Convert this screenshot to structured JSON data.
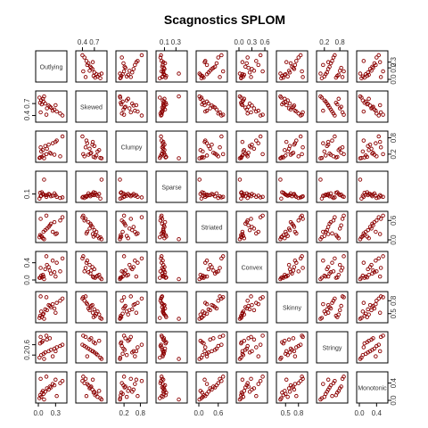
{
  "chart_data": {
    "type": "scatter",
    "title": "Scagnostics SPLOM",
    "variables": [
      "Outlying",
      "Skewed",
      "Clumpy",
      "Sparse",
      "Striated",
      "Convex",
      "Skinny",
      "Stringy",
      "Monotonic"
    ],
    "ranges": [
      [
        0.0,
        0.45
      ],
      [
        0.3,
        0.95
      ],
      [
        0.0,
        0.95
      ],
      [
        0.0,
        0.45
      ],
      [
        0.0,
        0.8
      ],
      [
        0.0,
        0.6
      ],
      [
        0.35,
        0.95
      ],
      [
        0.0,
        1.0
      ],
      [
        0.0,
        0.6
      ]
    ],
    "axis_ticks": {
      "bottom": {
        "0": [
          "0.0",
          "0.3"
        ],
        "2": [
          "0.2",
          "0.8"
        ],
        "4": [
          "0.0",
          "0.6"
        ],
        "6": [
          "0.5",
          "0.8"
        ],
        "8": [
          "0.0",
          "0.4"
        ]
      },
      "top": {
        "1": [
          "0.4",
          "0.7"
        ],
        "3": [
          "0.1",
          "0.3"
        ],
        "5": [
          "0.0",
          "0.3",
          "0.6"
        ],
        "7": [
          "0.2",
          "0.8"
        ]
      },
      "left": {
        "1": [
          "0.4",
          "0.7"
        ],
        "3": [
          "0.1"
        ],
        "5": [
          "0.0",
          "0.4"
        ],
        "7": [
          "0.2",
          "0.6"
        ]
      },
      "right": {
        "0": [
          "0.0",
          "0.2",
          "0.3"
        ],
        "2": [
          "0.2",
          "0.8"
        ],
        "4": [
          "0.0",
          "0.6"
        ],
        "6": [
          "0.5",
          "0.8"
        ],
        "8": [
          "0.0",
          "0.4"
        ]
      }
    },
    "point_color": "#8b0000",
    "observations": [
      [
        0.02,
        0.85,
        0.06,
        0.02,
        0.08,
        0.05,
        0.4,
        0.1,
        0.05
      ],
      [
        0.05,
        0.78,
        0.3,
        0.07,
        0.12,
        0.1,
        0.55,
        0.2,
        0.08
      ],
      [
        0.09,
        0.75,
        0.15,
        0.09,
        0.25,
        0.08,
        0.5,
        0.25,
        0.15
      ],
      [
        0.12,
        0.7,
        0.5,
        0.08,
        0.3,
        0.25,
        0.6,
        0.3,
        0.2
      ],
      [
        0.18,
        0.65,
        0.55,
        0.1,
        0.4,
        0.3,
        0.7,
        0.35,
        0.25
      ],
      [
        0.22,
        0.6,
        0.22,
        0.06,
        0.5,
        0.15,
        0.65,
        0.4,
        0.3
      ],
      [
        0.28,
        0.55,
        0.18,
        0.11,
        0.55,
        0.18,
        0.62,
        0.45,
        0.35
      ],
      [
        0.32,
        0.5,
        0.7,
        0.05,
        0.2,
        0.4,
        0.75,
        0.5,
        0.1
      ],
      [
        0.38,
        0.45,
        0.12,
        0.03,
        0.6,
        0.2,
        0.8,
        0.55,
        0.4
      ],
      [
        0.42,
        0.4,
        0.85,
        0.04,
        0.7,
        0.5,
        0.85,
        0.6,
        0.45
      ],
      [
        0.03,
        0.72,
        0.08,
        0.12,
        0.15,
        0.05,
        0.45,
        0.65,
        0.12
      ],
      [
        0.06,
        0.68,
        0.1,
        0.13,
        0.1,
        0.06,
        0.42,
        0.7,
        0.18
      ],
      [
        0.08,
        0.82,
        0.35,
        0.1,
        0.05,
        0.12,
        0.48,
        0.75,
        0.22
      ],
      [
        0.15,
        0.58,
        0.4,
        0.08,
        0.35,
        0.35,
        0.58,
        0.8,
        0.28
      ],
      [
        0.2,
        0.62,
        0.25,
        0.09,
        0.45,
        0.22,
        0.68,
        0.85,
        0.32
      ],
      [
        0.25,
        0.52,
        0.6,
        0.07,
        0.25,
        0.45,
        0.72,
        0.15,
        0.38
      ],
      [
        0.1,
        0.88,
        0.05,
        0.35,
        0.02,
        0.02,
        0.38,
        0.05,
        0.02
      ],
      [
        0.04,
        0.48,
        0.45,
        0.06,
        0.65,
        0.28,
        0.9,
        0.9,
        0.5
      ],
      [
        0.14,
        0.42,
        0.2,
        0.05,
        0.75,
        0.55,
        0.88,
        0.95,
        0.55
      ],
      [
        0.3,
        0.66,
        0.65,
        0.08,
        0.18,
        0.08,
        0.52,
        0.35,
        0.48
      ]
    ]
  }
}
